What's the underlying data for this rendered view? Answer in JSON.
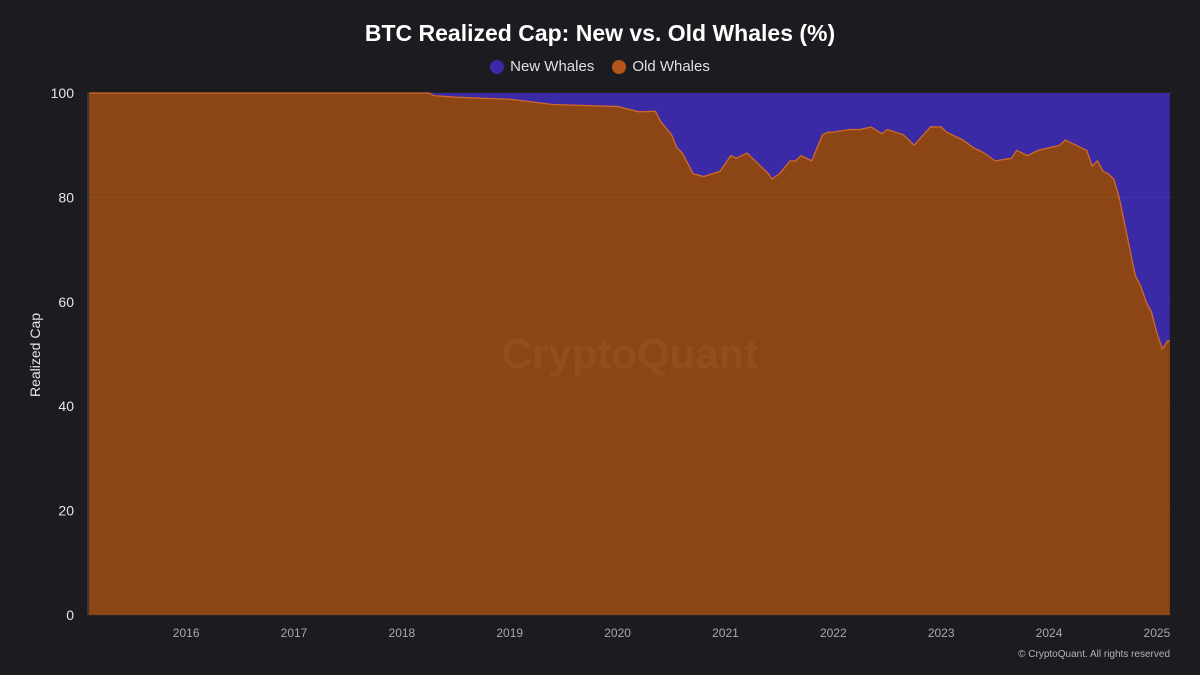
{
  "chart_data": {
    "type": "area",
    "title": "BTC Realized Cap: New vs. Old Whales (%)",
    "xlabel": "",
    "ylabel": "Realized Cap",
    "ylim": [
      0,
      100
    ],
    "xlim": [
      "2015-08",
      "2025-08"
    ],
    "y_ticks": [
      "0",
      "20",
      "40",
      "60",
      "80",
      "100"
    ],
    "x_ticks": [
      "2016",
      "2017",
      "2018",
      "2019",
      "2020",
      "2021",
      "2022",
      "2023",
      "2024",
      "2025"
    ],
    "grid": true,
    "legend": "top-center",
    "stacked": true,
    "x": [
      2015.6,
      2016.0,
      2017.0,
      2018.0,
      2018.75,
      2018.8,
      2019.0,
      2019.5,
      2019.9,
      2020.5,
      2020.7,
      2020.85,
      2020.9,
      2021.0,
      2021.05,
      2021.1,
      2021.15,
      2021.2,
      2021.3,
      2021.45,
      2021.55,
      2021.6,
      2021.7,
      2021.8,
      2021.9,
      2021.93,
      2022.0,
      2022.08,
      2022.1,
      2022.15,
      2022.2,
      2022.3,
      2022.4,
      2022.45,
      2022.5,
      2022.65,
      2022.75,
      2022.85,
      2022.95,
      2023.0,
      2023.15,
      2023.25,
      2023.4,
      2023.5,
      2023.55,
      2023.6,
      2023.7,
      2023.8,
      2023.9,
      2024.0,
      2024.15,
      2024.2,
      2024.3,
      2024.4,
      2024.5,
      2024.6,
      2024.65,
      2024.75,
      2024.85,
      2024.9,
      2024.95,
      2025.0,
      2025.05,
      2025.1,
      2025.15,
      2025.2,
      2025.25,
      2025.3,
      2025.35,
      2025.4,
      2025.45,
      2025.5,
      2025.55,
      2025.6,
      2025.62
    ],
    "series": [
      {
        "name": "New Whales",
        "color": "#3a2aa6",
        "values": [
          0,
          0,
          0,
          0,
          0,
          0.5,
          0.8,
          1.2,
          2.2,
          2.6,
          3.6,
          3.5,
          5.5,
          8,
          10.5,
          11.5,
          13.5,
          15.5,
          16,
          15,
          12,
          12.5,
          11.5,
          13.5,
          15.5,
          16.5,
          15.5,
          13.5,
          13,
          13,
          12,
          13,
          8,
          7.5,
          7.5,
          7,
          7,
          6.5,
          7.8,
          7,
          8,
          10,
          6.5,
          6.5,
          7.5,
          8,
          9,
          10.5,
          11.5,
          13,
          12.5,
          11,
          12,
          11,
          10.5,
          10,
          9,
          10,
          11,
          14,
          13,
          15,
          15.5,
          16.5,
          20,
          25,
          30,
          35,
          37,
          40,
          42,
          46,
          49,
          47.5,
          47.5
        ]
      },
      {
        "name": "Old Whales",
        "color": "#8c4615",
        "values": [
          100,
          100,
          100,
          100,
          100,
          99.5,
          99.2,
          98.8,
          97.8,
          97.4,
          96.4,
          96.5,
          94.5,
          92,
          89.5,
          88.5,
          86.5,
          84.5,
          84,
          85,
          88,
          87.5,
          88.5,
          86.5,
          84.5,
          83.5,
          84.5,
          86.5,
          87,
          87,
          88,
          87,
          92,
          92.5,
          92.5,
          93,
          93,
          93.5,
          92.2,
          93,
          92,
          90,
          93.5,
          93.5,
          92.5,
          92,
          91,
          89.5,
          88.5,
          87,
          87.5,
          89,
          88,
          89,
          89.5,
          90,
          91,
          90,
          89,
          86,
          87,
          85,
          84.5,
          83.5,
          80,
          75,
          70,
          65,
          63,
          60,
          58,
          54,
          51,
          52.5,
          52.5
        ]
      }
    ]
  },
  "watermark": "CryptoQuant",
  "copyright": "© CryptoQuant. All rights reserved"
}
